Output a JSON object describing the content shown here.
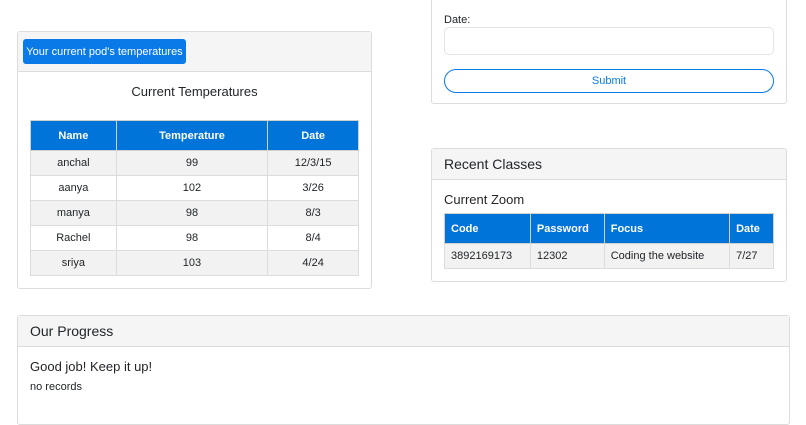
{
  "temperatures_card": {
    "button": "Your current pod's temperatures",
    "title": "Current Temperatures",
    "table": {
      "headers": [
        "Name",
        "Temperature",
        "Date"
      ],
      "rows": [
        [
          "anchal",
          99,
          "12/3/15"
        ],
        [
          "aanya",
          102,
          "3/26"
        ],
        [
          "manya",
          98,
          "8/3"
        ],
        [
          "Rachel",
          98,
          "8/4"
        ],
        [
          "sriya",
          103,
          "4/24"
        ]
      ]
    }
  },
  "form": {
    "date_label": "Date:",
    "submit": "Submit"
  },
  "recent_classes": {
    "header": "Recent Classes",
    "title": "Current Zoom",
    "table": {
      "headers": [
        "Code",
        "Password",
        "Focus",
        "Date"
      ],
      "rows": [
        [
          3892169173,
          12302,
          "Coding the website",
          "7/27"
        ]
      ]
    }
  },
  "progress": {
    "header": "Our Progress",
    "title": "Good job! Keep it up!",
    "message": "no records"
  }
}
